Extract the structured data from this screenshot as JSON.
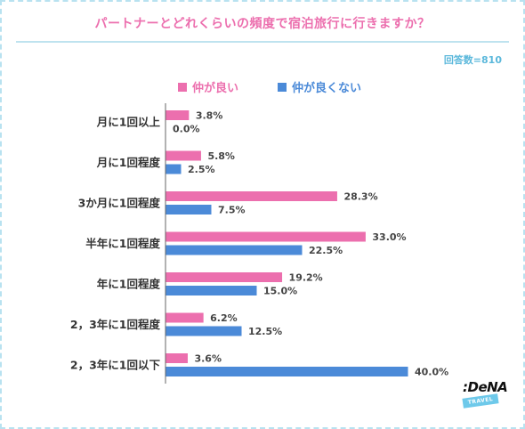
{
  "header": {
    "title": "パートナーとどれくらいの頻度で宿泊旅行に行きますか？",
    "respondents": "回答数=810"
  },
  "colors": {
    "series_good": "#ec6fae",
    "series_bad": "#4b8ad8",
    "title": "#ec6fae",
    "accent": "#5bb8db"
  },
  "chart_data": {
    "type": "bar",
    "orientation": "horizontal",
    "categories": [
      "月に1回以上",
      "月に1回程度",
      "3か月に1回程度",
      "半年に1回程度",
      "年に1回程度",
      "2，3年に1回程度",
      "2，3年に1回以下"
    ],
    "series": [
      {
        "name": "仲が良い",
        "values": [
          3.8,
          5.8,
          28.3,
          33.0,
          19.2,
          6.2,
          3.6
        ],
        "labels": [
          "3.8%",
          "5.8%",
          "28.3%",
          "33.0%",
          "19.2%",
          "6.2%",
          "3.6%"
        ]
      },
      {
        "name": "仲が良くない",
        "values": [
          0.0,
          2.5,
          7.5,
          22.5,
          15.0,
          12.5,
          40.0
        ],
        "labels": [
          "0.0%",
          "2.5%",
          "7.5%",
          "22.5%",
          "15.0%",
          "12.5%",
          "40.0%"
        ]
      }
    ],
    "unit": "%",
    "xlim": [
      0,
      45
    ],
    "grid": false,
    "legend_position": "top"
  },
  "logo": {
    "brand": ":DeNA",
    "sub": "TRAVEL"
  }
}
